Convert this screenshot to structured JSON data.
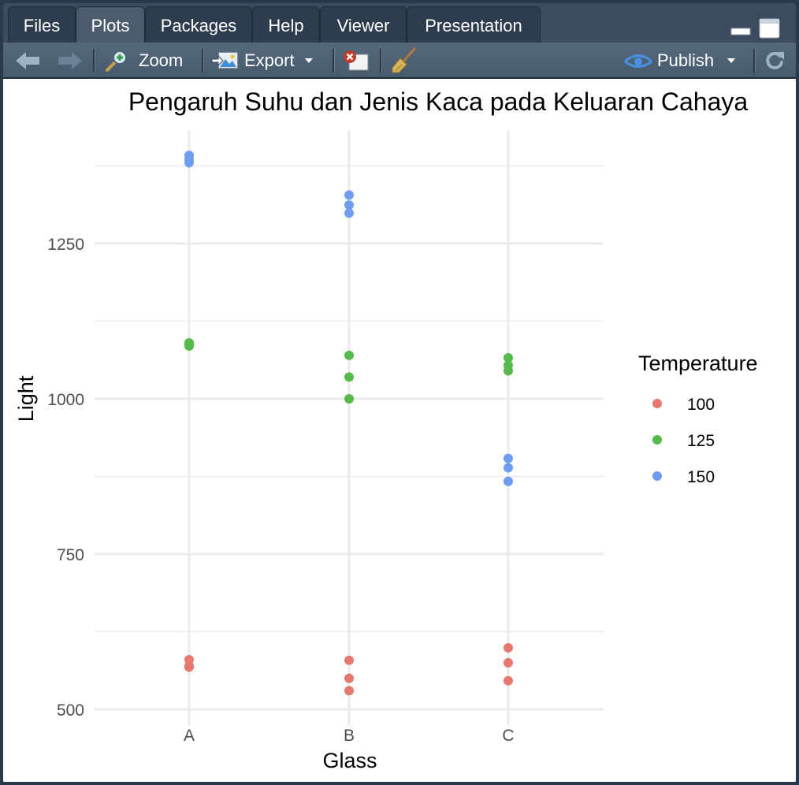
{
  "tabs": [
    {
      "label": "Files"
    },
    {
      "label": "Plots"
    },
    {
      "label": "Packages"
    },
    {
      "label": "Help"
    },
    {
      "label": "Viewer"
    },
    {
      "label": "Presentation"
    }
  ],
  "active_tab": "Plots",
  "toolbar": {
    "zoom_label": "Zoom",
    "export_label": "Export",
    "publish_label": "Publish",
    "icons": [
      "back-arrow-icon",
      "forward-arrow-icon",
      "zoom-icon",
      "export-icon",
      "remove-plot-icon",
      "broom-icon",
      "publish-icon",
      "refresh-icon"
    ]
  },
  "colors": {
    "temp_100": "#E7786F",
    "temp_125": "#55B94B",
    "temp_150": "#6E9CF0",
    "grid": "#EBEBEB"
  },
  "chart_data": {
    "type": "scatter",
    "title": "Pengaruh Suhu dan Jenis Kaca pada Keluaran Cahaya",
    "xlabel": "Glass",
    "ylabel": "Light",
    "categories": [
      "A",
      "B",
      "C"
    ],
    "ylim": [
      480,
      1420
    ],
    "yticks": [
      500,
      750,
      1000,
      1250
    ],
    "grid": true,
    "legend": {
      "title": "Temperature",
      "placement": "right"
    },
    "series": [
      {
        "name": "100",
        "color": "#E7786F",
        "points": [
          {
            "x": "A",
            "y": 580
          },
          {
            "x": "A",
            "y": 568
          },
          {
            "x": "A",
            "y": 570
          },
          {
            "x": "B",
            "y": 579
          },
          {
            "x": "B",
            "y": 550
          },
          {
            "x": "B",
            "y": 530
          },
          {
            "x": "C",
            "y": 599
          },
          {
            "x": "C",
            "y": 575
          },
          {
            "x": "C",
            "y": 546
          }
        ]
      },
      {
        "name": "125",
        "color": "#55B94B",
        "points": [
          {
            "x": "A",
            "y": 1090
          },
          {
            "x": "A",
            "y": 1085
          },
          {
            "x": "A",
            "y": 1087
          },
          {
            "x": "B",
            "y": 1070
          },
          {
            "x": "B",
            "y": 1035
          },
          {
            "x": "B",
            "y": 1000
          },
          {
            "x": "C",
            "y": 1066
          },
          {
            "x": "C",
            "y": 1054
          },
          {
            "x": "C",
            "y": 1045
          }
        ]
      },
      {
        "name": "150",
        "color": "#6E9CF0",
        "points": [
          {
            "x": "A",
            "y": 1392
          },
          {
            "x": "A",
            "y": 1380
          },
          {
            "x": "A",
            "y": 1386
          },
          {
            "x": "B",
            "y": 1328
          },
          {
            "x": "B",
            "y": 1312
          },
          {
            "x": "B",
            "y": 1299
          },
          {
            "x": "C",
            "y": 904
          },
          {
            "x": "C",
            "y": 889
          },
          {
            "x": "C",
            "y": 867
          }
        ]
      }
    ]
  }
}
